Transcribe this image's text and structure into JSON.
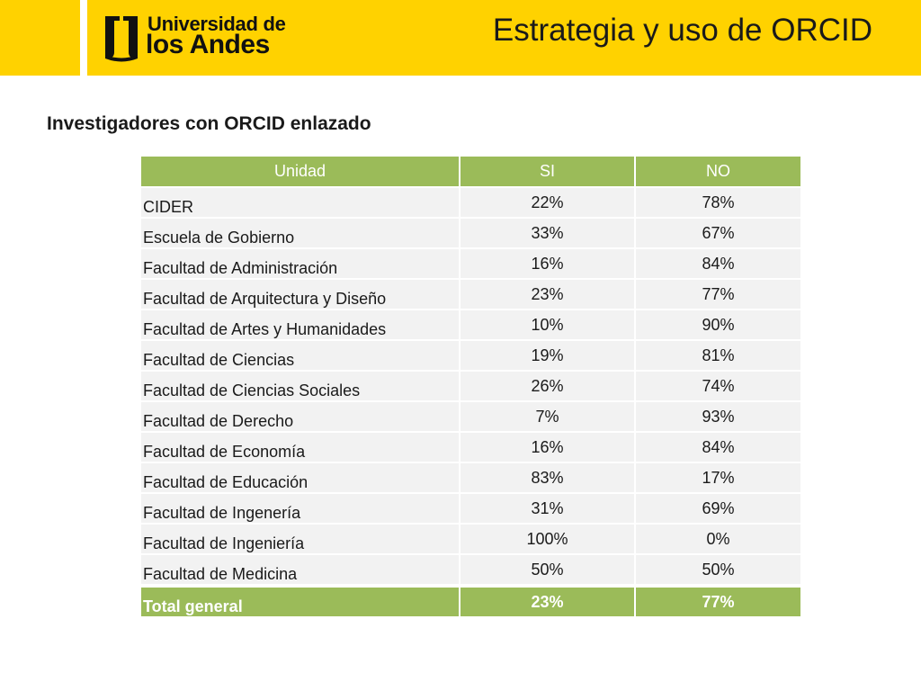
{
  "header": {
    "logo_line1": "Universidad de",
    "logo_line2": "los Andes",
    "title": "Estrategia y uso de ORCID"
  },
  "subtitle": "Investigadores con ORCID enlazado",
  "table": {
    "columns": [
      "Unidad",
      "SI",
      "NO"
    ],
    "rows": [
      {
        "unidad": "CIDER",
        "si": "22%",
        "no": "78%"
      },
      {
        "unidad": "Escuela de Gobierno",
        "si": "33%",
        "no": "67%"
      },
      {
        "unidad": "Facultad de Administración",
        "si": "16%",
        "no": "84%"
      },
      {
        "unidad": "Facultad de Arquitectura y Diseño",
        "si": "23%",
        "no": "77%"
      },
      {
        "unidad": "Facultad de Artes y Humanidades",
        "si": "10%",
        "no": "90%"
      },
      {
        "unidad": "Facultad de Ciencias",
        "si": "19%",
        "no": "81%"
      },
      {
        "unidad": "Facultad de Ciencias Sociales",
        "si": "26%",
        "no": "74%"
      },
      {
        "unidad": "Facultad de Derecho",
        "si": "7%",
        "no": "93%"
      },
      {
        "unidad": "Facultad de Economía",
        "si": "16%",
        "no": "84%"
      },
      {
        "unidad": "Facultad de Educación",
        "si": "83%",
        "no": "17%"
      },
      {
        "unidad": "Facultad de Ingenería",
        "si": "31%",
        "no": "69%"
      },
      {
        "unidad": "Facultad de Ingeniería",
        "si": "100%",
        "no": "0%"
      },
      {
        "unidad": "Facultad de Medicina",
        "si": "50%",
        "no": "50%"
      }
    ],
    "total": {
      "unidad": "Total general",
      "si": "23%",
      "no": "77%"
    }
  },
  "colors": {
    "header_yellow": "#FFD200",
    "table_header_green": "#9BBB59",
    "row_gray": "#F2F2F2"
  }
}
